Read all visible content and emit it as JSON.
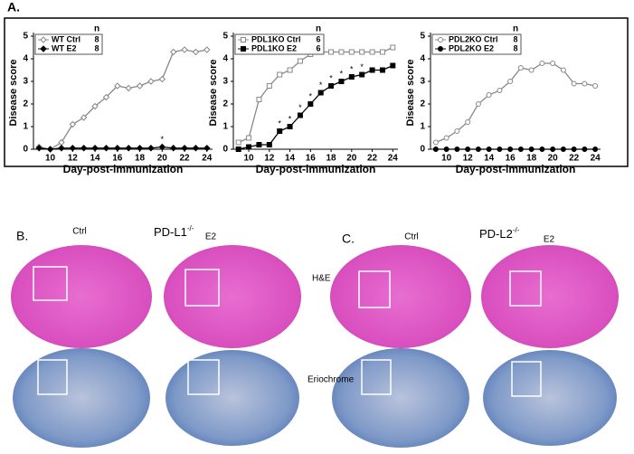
{
  "chart_data": [
    {
      "type": "line",
      "ylabel": "Disease score",
      "xlabel": "Day-post-immunization",
      "legend_header": "n",
      "x": [
        9,
        10,
        11,
        12,
        13,
        14,
        15,
        16,
        17,
        18,
        19,
        20,
        21,
        22,
        23,
        24
      ],
      "xlim": [
        8.5,
        24.5
      ],
      "xticks": [
        10,
        12,
        14,
        16,
        18,
        20,
        22,
        24
      ],
      "ylim": [
        0,
        5
      ],
      "yticks": [
        0,
        1,
        2,
        3,
        4,
        5
      ],
      "series": [
        {
          "name": "WT Ctrl",
          "n": 8,
          "color": "#888888",
          "marker": "diamond",
          "values": [
            0.1,
            0,
            0.3,
            1.1,
            1.4,
            1.9,
            2.3,
            2.8,
            2.7,
            2.8,
            3.0,
            3.1,
            4.3,
            4.4,
            4.3,
            4.4
          ]
        },
        {
          "name": "WT E2",
          "n": 8,
          "color": "#000000",
          "marker": "diamond",
          "values": [
            0.05,
            0,
            0.05,
            0.05,
            0.05,
            0.05,
            0.05,
            0.05,
            0.05,
            0.05,
            0.05,
            0.1,
            0.05,
            0.05,
            0.05,
            0.05
          ]
        }
      ],
      "significance": {
        "label": "*",
        "x": [
          20
        ]
      }
    },
    {
      "type": "line",
      "ylabel": "Disease score",
      "xlabel": "Day-post-immunization",
      "legend_header": "n",
      "x": [
        9,
        10,
        11,
        12,
        13,
        14,
        15,
        16,
        17,
        18,
        19,
        20,
        21,
        22,
        23,
        24
      ],
      "xlim": [
        8.5,
        24.5
      ],
      "xticks": [
        10,
        12,
        14,
        16,
        18,
        20,
        22,
        24
      ],
      "ylim": [
        0,
        5
      ],
      "yticks": [
        0,
        1,
        2,
        3,
        4,
        5
      ],
      "series": [
        {
          "name": "PDL1KO Ctrl",
          "n": 6,
          "color": "#888888",
          "marker": "square",
          "values": [
            0.3,
            0.5,
            2.2,
            2.8,
            3.3,
            3.5,
            3.9,
            4.2,
            4.3,
            4.3,
            4.3,
            4.3,
            4.3,
            4.3,
            4.3,
            4.5
          ]
        },
        {
          "name": "PDL1KO E2",
          "n": 6,
          "color": "#000000",
          "marker": "square",
          "values": [
            0,
            0.1,
            0.2,
            0.2,
            0.8,
            1.0,
            1.5,
            2.0,
            2.5,
            2.8,
            3.0,
            3.2,
            3.3,
            3.5,
            3.5,
            3.7
          ]
        }
      ],
      "significance": {
        "label": "*",
        "x": [
          13,
          14,
          15,
          16,
          17,
          18,
          19,
          20,
          21
        ]
      }
    },
    {
      "type": "line",
      "ylabel": "Disease score",
      "xlabel": "Day-post-immunization",
      "legend_header": "n",
      "x": [
        9,
        10,
        11,
        12,
        13,
        14,
        15,
        16,
        17,
        18,
        19,
        20,
        21,
        22,
        23,
        24
      ],
      "xlim": [
        8.5,
        24.5
      ],
      "xticks": [
        10,
        12,
        14,
        16,
        18,
        20,
        22,
        24
      ],
      "ylim": [
        0,
        5
      ],
      "yticks": [
        0,
        1,
        2,
        3,
        4,
        5
      ],
      "series": [
        {
          "name": "PDL2KO Ctrl",
          "n": 8,
          "color": "#888888",
          "marker": "circle",
          "values": [
            0.3,
            0.5,
            0.8,
            1.2,
            2.0,
            2.4,
            2.6,
            3.0,
            3.6,
            3.5,
            3.8,
            3.8,
            3.5,
            2.9,
            2.9,
            2.8
          ]
        },
        {
          "name": "PDL2KO E2",
          "n": 8,
          "color": "#000000",
          "marker": "circle",
          "values": [
            0,
            0,
            0,
            0,
            0,
            0,
            0,
            0,
            0,
            0,
            0,
            0,
            0,
            0,
            0,
            0
          ]
        }
      ]
    }
  ],
  "figure": {
    "panel_a": "A.",
    "panel_b": "B.",
    "panel_c": "C.",
    "b_ctrl": "Ctrl",
    "b_title": "PD-L1",
    "b_sup": "-/-",
    "b_e2": "E2",
    "he": "H&E",
    "eriochrome": "Eriochrome",
    "c_ctrl": "Ctrl",
    "c_title": "PD-L2",
    "c_sup": "-/-",
    "c_e2": "E2"
  }
}
